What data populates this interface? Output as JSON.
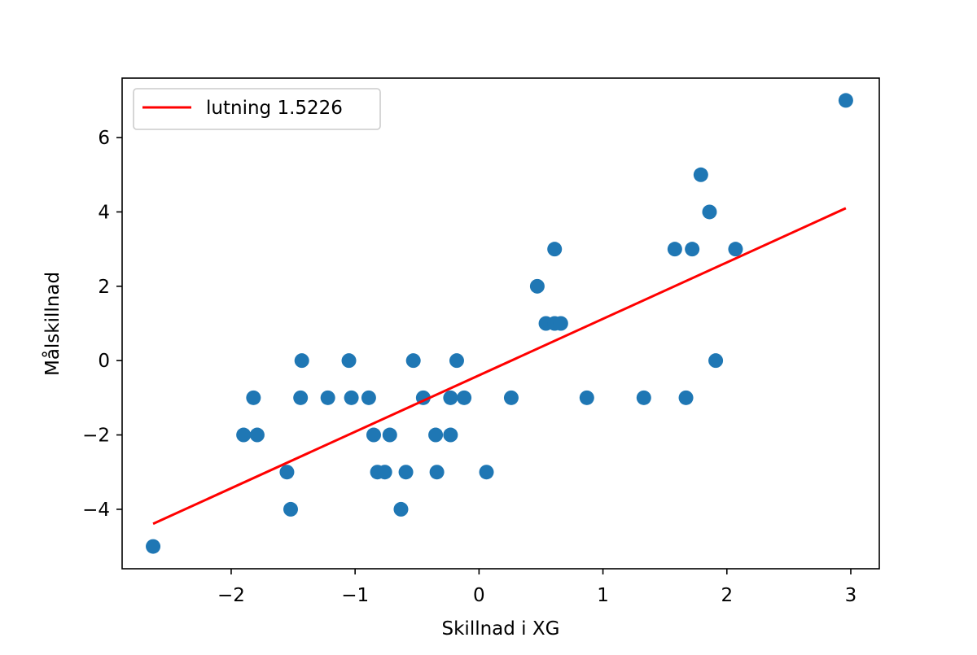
{
  "chart_data": {
    "type": "scatter",
    "title": "",
    "xlabel": "Skillnad i XG",
    "ylabel": "Målskillnad",
    "xlim": [
      -2.88,
      3.23
    ],
    "ylim": [
      -5.6,
      7.6
    ],
    "xticks": [
      -2,
      -1,
      0,
      1,
      2,
      3
    ],
    "xtick_labels": [
      "−2",
      "−1",
      "0",
      "1",
      "2",
      "3"
    ],
    "yticks": [
      -4,
      -2,
      0,
      2,
      4,
      6
    ],
    "ytick_labels": [
      "−4",
      "−2",
      "0",
      "2",
      "4",
      "6"
    ],
    "grid": false,
    "legend_position": "top-left",
    "colors": {
      "points": "#1f77b4",
      "fit_line": "#ff0000"
    },
    "series": [
      {
        "kind": "points",
        "points": [
          {
            "x": -2.63,
            "y": -5
          },
          {
            "x": -1.9,
            "y": -2
          },
          {
            "x": -1.82,
            "y": -1
          },
          {
            "x": -1.79,
            "y": -2
          },
          {
            "x": -1.55,
            "y": -3
          },
          {
            "x": -1.52,
            "y": -4
          },
          {
            "x": -1.44,
            "y": -1
          },
          {
            "x": -1.43,
            "y": 0
          },
          {
            "x": -1.22,
            "y": -1
          },
          {
            "x": -1.05,
            "y": 0
          },
          {
            "x": -1.03,
            "y": -1
          },
          {
            "x": -0.89,
            "y": -1
          },
          {
            "x": -0.85,
            "y": -2
          },
          {
            "x": -0.82,
            "y": -3
          },
          {
            "x": -0.76,
            "y": -3
          },
          {
            "x": -0.72,
            "y": -2
          },
          {
            "x": -0.63,
            "y": -4
          },
          {
            "x": -0.59,
            "y": -3
          },
          {
            "x": -0.53,
            "y": 0
          },
          {
            "x": -0.45,
            "y": -1
          },
          {
            "x": -0.35,
            "y": -2
          },
          {
            "x": -0.34,
            "y": -3
          },
          {
            "x": -0.23,
            "y": -1
          },
          {
            "x": -0.23,
            "y": -2
          },
          {
            "x": -0.18,
            "y": 0
          },
          {
            "x": -0.12,
            "y": -1
          },
          {
            "x": 0.06,
            "y": -3
          },
          {
            "x": 0.26,
            "y": -1
          },
          {
            "x": 0.47,
            "y": 2
          },
          {
            "x": 0.54,
            "y": 1
          },
          {
            "x": 0.61,
            "y": 3
          },
          {
            "x": 0.61,
            "y": 1
          },
          {
            "x": 0.66,
            "y": 1
          },
          {
            "x": 0.87,
            "y": -1
          },
          {
            "x": 1.33,
            "y": -1
          },
          {
            "x": 1.58,
            "y": 3
          },
          {
            "x": 1.67,
            "y": -1
          },
          {
            "x": 1.72,
            "y": 3
          },
          {
            "x": 1.79,
            "y": 5
          },
          {
            "x": 1.86,
            "y": 4
          },
          {
            "x": 1.91,
            "y": 0
          },
          {
            "x": 2.07,
            "y": 3
          },
          {
            "x": 2.96,
            "y": 7
          }
        ]
      },
      {
        "kind": "line",
        "name": "lutning 1.5226",
        "x": [
          -2.63,
          2.96
        ],
        "y": [
          -4.39,
          4.1
        ]
      }
    ]
  }
}
